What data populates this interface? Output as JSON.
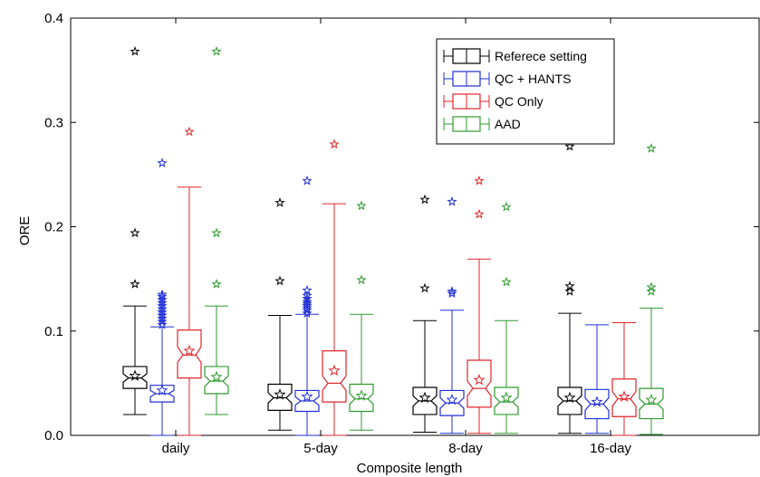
{
  "chart_data": {
    "type": "box",
    "title": "",
    "xlabel": "Composite length",
    "ylabel": "ORE",
    "ylim": [
      0,
      0.4
    ],
    "yticks": [
      "0.0",
      "0.1",
      "0.2",
      "0.3",
      "0.4"
    ],
    "categories": [
      "daily",
      "5-day",
      "8-day",
      "16-day"
    ],
    "grid": false,
    "legend_position": "top-right",
    "series": [
      {
        "name": "Referece setting",
        "color": "#000000",
        "boxes": [
          {
            "whisker_low": 0.02,
            "q1": 0.045,
            "median": 0.055,
            "q3": 0.066,
            "whisker_high": 0.124,
            "notch_low": 0.051,
            "notch_high": 0.059,
            "mean": 0.057,
            "outliers": [
              0.145,
              0.194,
              0.368
            ]
          },
          {
            "whisker_low": 0.005,
            "q1": 0.024,
            "median": 0.036,
            "q3": 0.049,
            "whisker_high": 0.115,
            "notch_low": 0.031,
            "notch_high": 0.041,
            "mean": 0.039,
            "outliers": [
              0.148,
              0.223
            ]
          },
          {
            "whisker_low": 0.003,
            "q1": 0.02,
            "median": 0.033,
            "q3": 0.046,
            "whisker_high": 0.11,
            "notch_low": 0.028,
            "notch_high": 0.038,
            "mean": 0.036,
            "outliers": [
              0.141,
              0.226
            ]
          },
          {
            "whisker_low": 0.002,
            "q1": 0.02,
            "median": 0.033,
            "q3": 0.046,
            "whisker_high": 0.117,
            "notch_low": 0.028,
            "notch_high": 0.038,
            "mean": 0.036,
            "outliers": [
              0.138,
              0.143,
              0.277
            ]
          }
        ]
      },
      {
        "name": "QC + HANTS",
        "color": "#1f2fd6",
        "boxes": [
          {
            "whisker_low": 0.0,
            "q1": 0.032,
            "median": 0.04,
            "q3": 0.048,
            "whisker_high": 0.104,
            "notch_low": 0.037,
            "notch_high": 0.043,
            "mean": 0.043,
            "outliers": [
              0.106,
              0.109,
              0.112,
              0.115,
              0.118,
              0.121,
              0.124,
              0.127,
              0.13,
              0.133,
              0.135,
              0.261
            ]
          },
          {
            "whisker_low": 0.0,
            "q1": 0.023,
            "median": 0.033,
            "q3": 0.043,
            "whisker_high": 0.116,
            "notch_low": 0.029,
            "notch_high": 0.037,
            "mean": 0.037,
            "outliers": [
              0.117,
              0.12,
              0.122,
              0.124,
              0.126,
              0.128,
              0.131,
              0.134,
              0.139,
              0.244
            ]
          },
          {
            "whisker_low": 0.002,
            "q1": 0.019,
            "median": 0.031,
            "q3": 0.043,
            "whisker_high": 0.12,
            "notch_low": 0.026,
            "notch_high": 0.036,
            "mean": 0.034,
            "outliers": [
              0.136,
              0.138,
              0.224
            ]
          },
          {
            "whisker_low": 0.002,
            "q1": 0.016,
            "median": 0.03,
            "q3": 0.044,
            "whisker_high": 0.106,
            "notch_low": 0.024,
            "notch_high": 0.036,
            "mean": 0.032,
            "outliers": []
          }
        ]
      },
      {
        "name": "QC Only",
        "color": "#e0262a",
        "boxes": [
          {
            "whisker_low": 0.0,
            "q1": 0.055,
            "median": 0.077,
            "q3": 0.101,
            "whisker_high": 0.238,
            "notch_low": 0.07,
            "notch_high": 0.085,
            "mean": 0.081,
            "outliers": [
              0.291
            ]
          },
          {
            "whisker_low": 0.0,
            "q1": 0.032,
            "median": 0.05,
            "q3": 0.081,
            "whisker_high": 0.222,
            "notch_low": 0.043,
            "notch_high": 0.057,
            "mean": 0.062,
            "outliers": [
              0.279
            ]
          },
          {
            "whisker_low": 0.002,
            "q1": 0.027,
            "median": 0.045,
            "q3": 0.072,
            "whisker_high": 0.169,
            "notch_low": 0.038,
            "notch_high": 0.052,
            "mean": 0.053,
            "outliers": [
              0.212,
              0.244
            ]
          },
          {
            "whisker_low": 0.0,
            "q1": 0.018,
            "median": 0.035,
            "q3": 0.054,
            "whisker_high": 0.108,
            "notch_low": 0.028,
            "notch_high": 0.042,
            "mean": 0.037,
            "outliers": []
          }
        ]
      },
      {
        "name": "AAD",
        "color": "#2e9a2e",
        "boxes": [
          {
            "whisker_low": 0.02,
            "q1": 0.04,
            "median": 0.052,
            "q3": 0.066,
            "whisker_high": 0.124,
            "notch_low": 0.047,
            "notch_high": 0.057,
            "mean": 0.056,
            "outliers": [
              0.145,
              0.194,
              0.368
            ]
          },
          {
            "whisker_low": 0.005,
            "q1": 0.023,
            "median": 0.035,
            "q3": 0.049,
            "whisker_high": 0.116,
            "notch_low": 0.03,
            "notch_high": 0.04,
            "mean": 0.038,
            "outliers": [
              0.149,
              0.22
            ]
          },
          {
            "whisker_low": 0.002,
            "q1": 0.02,
            "median": 0.032,
            "q3": 0.046,
            "whisker_high": 0.11,
            "notch_low": 0.027,
            "notch_high": 0.037,
            "mean": 0.036,
            "outliers": [
              0.147,
              0.219
            ]
          },
          {
            "whisker_low": 0.001,
            "q1": 0.016,
            "median": 0.03,
            "q3": 0.045,
            "whisker_high": 0.122,
            "notch_low": 0.025,
            "notch_high": 0.035,
            "mean": 0.034,
            "outliers": [
              0.138,
              0.142,
              0.275
            ]
          }
        ]
      }
    ]
  }
}
